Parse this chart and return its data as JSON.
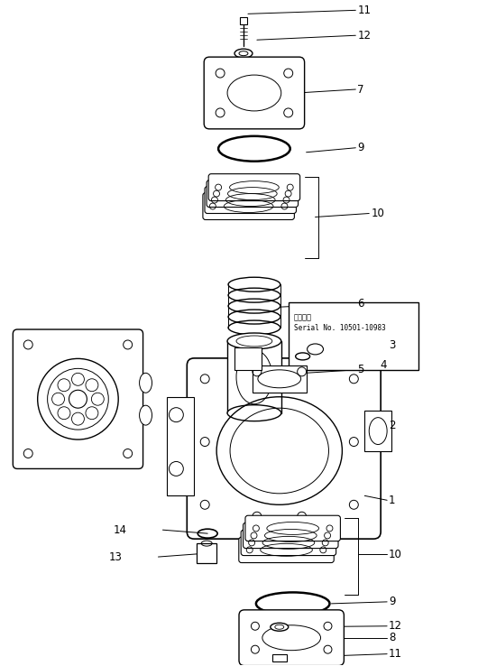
{
  "background_color": "#ffffff",
  "figure_width": 5.3,
  "figure_height": 7.38,
  "dpi": 100,
  "line_color": "#000000",
  "text_color": "#000000",
  "serial_text1": "適用号機",
  "serial_text2": "Serial No. 10501-10983",
  "label_fontsize": 8.5,
  "annotation_fontsize": 6.5
}
